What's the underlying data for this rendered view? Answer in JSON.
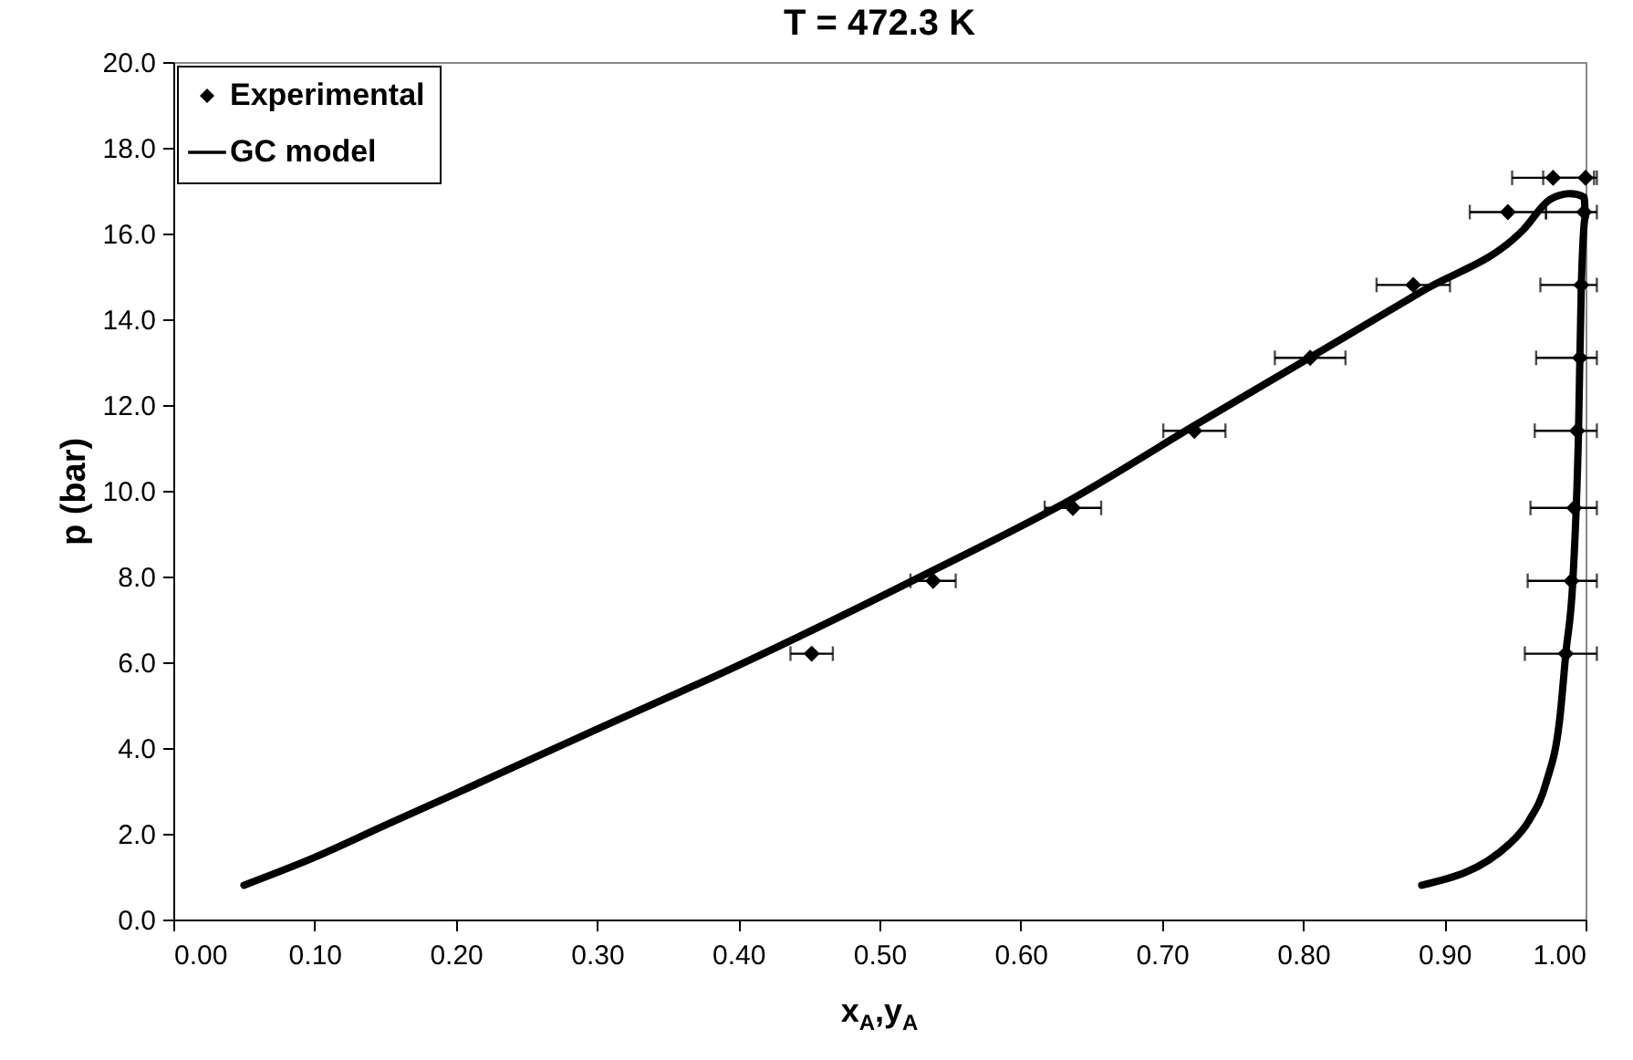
{
  "chart_data": {
    "type": "scatter",
    "title": "T = 472.3 K",
    "xlabel": "x$_{A}$,y$_{A}$",
    "ylabel": "p (bar)",
    "xlim": [
      0,
      1
    ],
    "ylim": [
      0,
      20
    ],
    "xticks": [
      {
        "value": 0,
        "label": "0.00"
      },
      {
        "value": 0.1,
        "label": "0.10"
      },
      {
        "value": 0.2,
        "label": "0.20"
      },
      {
        "value": 0.3,
        "label": "0.30"
      },
      {
        "value": 0.4,
        "label": "0.40"
      },
      {
        "value": 0.5,
        "label": "0.50"
      },
      {
        "value": 0.6,
        "label": "0.60"
      },
      {
        "value": 0.7,
        "label": "0.70"
      },
      {
        "value": 0.8,
        "label": "0.80"
      },
      {
        "value": 0.9,
        "label": "0.90"
      },
      {
        "value": 1,
        "label": "1.00"
      }
    ],
    "yticks": [
      {
        "value": 0,
        "label": "0.0"
      },
      {
        "value": 2,
        "label": "2.0"
      },
      {
        "value": 4,
        "label": "4.0"
      },
      {
        "value": 6,
        "label": "6.0"
      },
      {
        "value": 8,
        "label": "8.0"
      },
      {
        "value": 10,
        "label": "10.0"
      },
      {
        "value": 12,
        "label": "12.0"
      },
      {
        "value": 14,
        "label": "14.0"
      },
      {
        "value": 16,
        "label": "16.0"
      },
      {
        "value": 18,
        "label": "18.0"
      },
      {
        "value": 20,
        "label": "20.0"
      }
    ],
    "grid": false,
    "legend": "top left",
    "series": [
      {
        "name": "Experimental",
        "marker": "diamond",
        "color": "#000000",
        "x": [
          0.452,
          0.538,
          0.637,
          0.723,
          0.805,
          0.878,
          0.945,
          0.977,
          0.986,
          0.99,
          0.992,
          0.994,
          0.996,
          0.997,
          0.999,
          1.0
        ],
        "values": [
          6.2,
          7.9,
          9.6,
          11.4,
          13.1,
          14.8,
          16.5,
          17.3,
          6.2,
          7.9,
          9.6,
          11.4,
          13.1,
          14.8,
          16.5,
          17.3
        ],
        "xerrors": [
          0.015,
          0.016,
          0.02,
          0.022,
          0.025,
          0.026,
          0.027,
          [
            0.948,
            1.006
          ],
          [
            0.957,
            1.008
          ],
          [
            0.959,
            1.008
          ],
          [
            0.961,
            1.008
          ],
          [
            0.964,
            1.008
          ],
          [
            0.965,
            1.008
          ],
          [
            0.968,
            1.008
          ],
          [
            0.972,
            1.008
          ],
          [
            0.97,
            1.008
          ]
        ]
      },
      {
        "name": "GC model",
        "type": "line",
        "color": "#000000",
        "line_style": "solid",
        "x": [
          0.05,
          0.1,
          0.15,
          0.2,
          0.3,
          0.395,
          0.536,
          0.637,
          0.723,
          0.807,
          0.884,
          0.956,
          0.975,
          0.989,
          0.999,
          1.0,
          0.997,
          0.995,
          0.991,
          0.986,
          0.982,
          0.972,
          0.96,
          0.946,
          0.884
        ],
        "values": [
          0.8,
          1.45,
          2.2,
          2.94,
          4.44,
          5.85,
          8.11,
          9.82,
          11.52,
          13.15,
          14.65,
          16.09,
          16.8,
          16.93,
          16.85,
          16.4,
          14.79,
          11.35,
          7.9,
          6.2,
          4.76,
          3.18,
          2.31,
          1.76,
          0.8
        ]
      }
    ]
  }
}
